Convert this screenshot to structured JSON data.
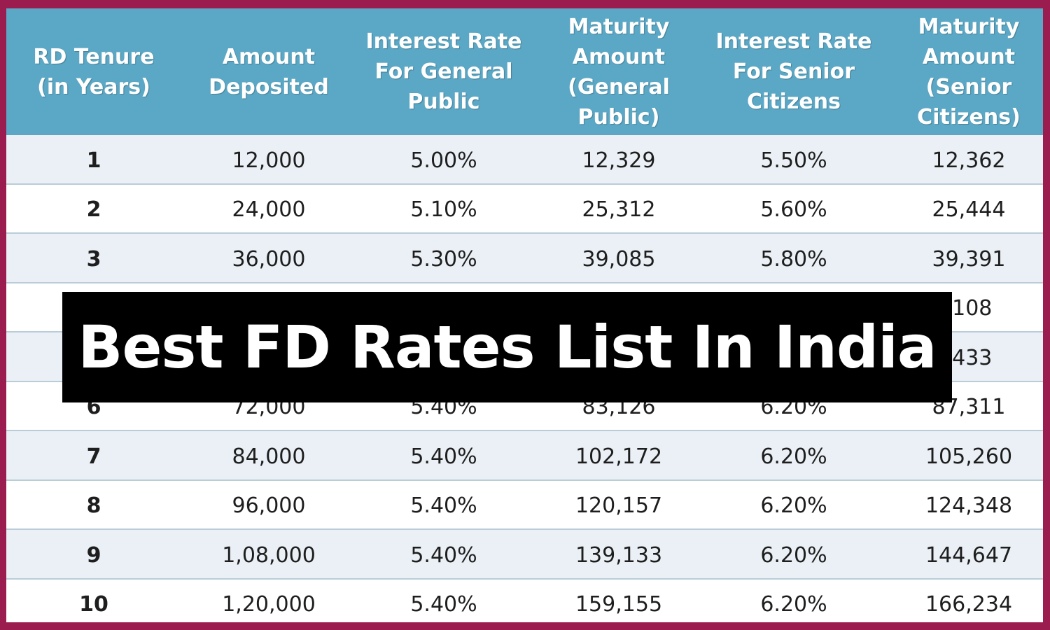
{
  "banner": {
    "title": "Best FD Rates List In India"
  },
  "table": {
    "headers": [
      "RD Tenure\n(in Years)",
      "Amount\nDeposited",
      "Interest Rate\nFor General\nPublic",
      "Maturity\nAmount\n(General Public)",
      "Interest Rate\nFor Senior\nCitizens",
      "Maturity\nAmount (Senior\nCitizens)"
    ],
    "rows": [
      [
        "1",
        "12,000",
        "5.00%",
        "12,329",
        "5.50%",
        "12,362"
      ],
      [
        "2",
        "24,000",
        "5.10%",
        "25,312",
        "5.60%",
        "25,444"
      ],
      [
        "3",
        "36,000",
        "5.30%",
        "39,085",
        "5.80%",
        "39,391"
      ],
      [
        "",
        "",
        "",
        "",
        "",
        ",108"
      ],
      [
        "",
        "",
        "",
        "",
        "",
        ",433"
      ],
      [
        "6",
        "72,000",
        "5.40%",
        "83,126",
        "6.20%",
        "87,311"
      ],
      [
        "7",
        "84,000",
        "5.40%",
        "102,172",
        "6.20%",
        "105,260"
      ],
      [
        "8",
        "96,000",
        "5.40%",
        "120,157",
        "6.20%",
        "124,348"
      ],
      [
        "9",
        "1,08,000",
        "5.40%",
        "139,133",
        "6.20%",
        "144,647"
      ],
      [
        "10",
        "1,20,000",
        "5.40%",
        "159,155",
        "6.20%",
        "166,234"
      ]
    ]
  }
}
